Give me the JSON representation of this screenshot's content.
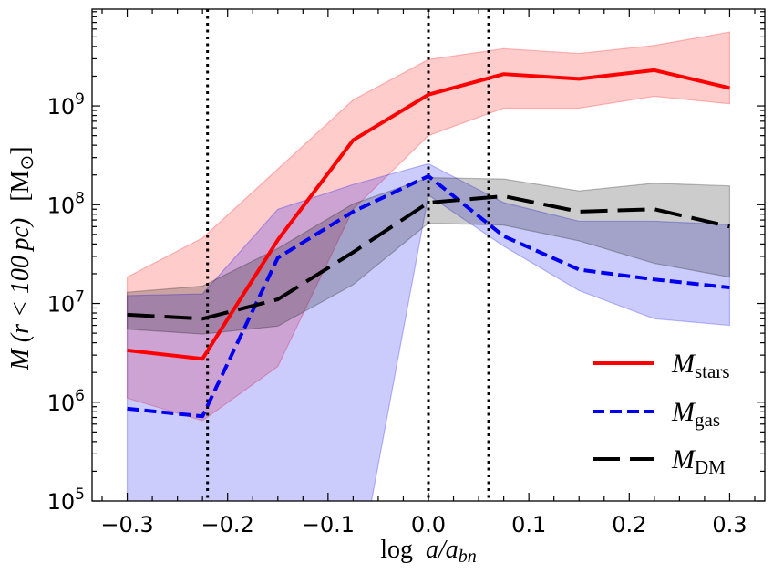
{
  "chart_data": {
    "type": "line",
    "x": [
      -0.3,
      -0.225,
      -0.15,
      -0.075,
      0.0,
      0.075,
      0.15,
      0.225,
      0.3
    ],
    "xlim": [
      -0.335,
      0.335
    ],
    "ylim_log10": [
      5.0,
      9.98
    ],
    "xticks": [
      -0.3,
      -0.2,
      -0.1,
      0.0,
      0.1,
      0.2,
      0.3
    ],
    "xtick_labels": [
      "−0.3",
      "−0.2",
      "−0.1",
      "0.0",
      "0.1",
      "0.2",
      "0.3"
    ],
    "yticks_log10": [
      5,
      6,
      7,
      8,
      9
    ],
    "ytick_base": "10",
    "ytick_exponents": [
      "5",
      "6",
      "7",
      "8",
      "9"
    ],
    "xlabel": {
      "prefix": "log",
      "main": "a/a",
      "sub": "bn"
    },
    "ylabel": {
      "main": "M (r < 100 pc)",
      "units": "[M",
      "units_sub": "⊙",
      "units_close": "]"
    },
    "vlines": [
      -0.22,
      0.0,
      0.06
    ],
    "series": [
      {
        "name": "stars",
        "color": "#ff0000",
        "dash": "solid",
        "values": [
          3350000.0,
          2750000.0,
          44000000.0,
          450000000.0,
          1300000000.0,
          2100000000.0,
          1880000000.0,
          2300000000.0,
          1520000000.0
        ],
        "band_low": [
          1100000.0,
          650000.0,
          2300000.0,
          90000000.0,
          500000000.0,
          950000000.0,
          950000000.0,
          1250000000.0,
          1050000000.0
        ],
        "band_high": [
          18500000.0,
          46000000.0,
          230000000.0,
          1150000000.0,
          2950000000.0,
          3800000000.0,
          3400000000.0,
          4100000000.0,
          5600000000.0
        ]
      },
      {
        "name": "gas",
        "color": "#0000ee",
        "dash": "short",
        "values": [
          860000.0,
          720000.0,
          29000000.0,
          85000000.0,
          195000000.0,
          48000000.0,
          22000000.0,
          17500000.0,
          14500000.0
        ],
        "band_low": [
          10000.0,
          10000.0,
          10000.0,
          10000.0,
          125000000.0,
          38000000.0,
          13500000.0,
          7000000.0,
          6000000.0
        ],
        "band_high": [
          12000000.0,
          12500000.0,
          90000000.0,
          160000000.0,
          260000000.0,
          105000000.0,
          68000000.0,
          68000000.0,
          63000000.0
        ]
      },
      {
        "name": "DM",
        "color": "#000000",
        "dash": "long",
        "values": [
          7700000.0,
          7000000.0,
          11000000.0,
          33000000.0,
          105000000.0,
          122000000.0,
          85000000.0,
          90000000.0,
          60000000.0
        ],
        "band_low": [
          5500000.0,
          4900000.0,
          5900000.0,
          15500000.0,
          65000000.0,
          62000000.0,
          43000000.0,
          25500000.0,
          18500000.0
        ],
        "band_high": [
          13000000.0,
          15000000.0,
          36000000.0,
          102000000.0,
          188000000.0,
          182000000.0,
          138000000.0,
          165000000.0,
          155000000.0
        ]
      }
    ],
    "legend": {
      "position": "lower-right",
      "entries": [
        {
          "main": "M",
          "sub": "stars"
        },
        {
          "main": "M",
          "sub": "gas"
        },
        {
          "main": "M",
          "sub": "DM"
        }
      ]
    }
  }
}
